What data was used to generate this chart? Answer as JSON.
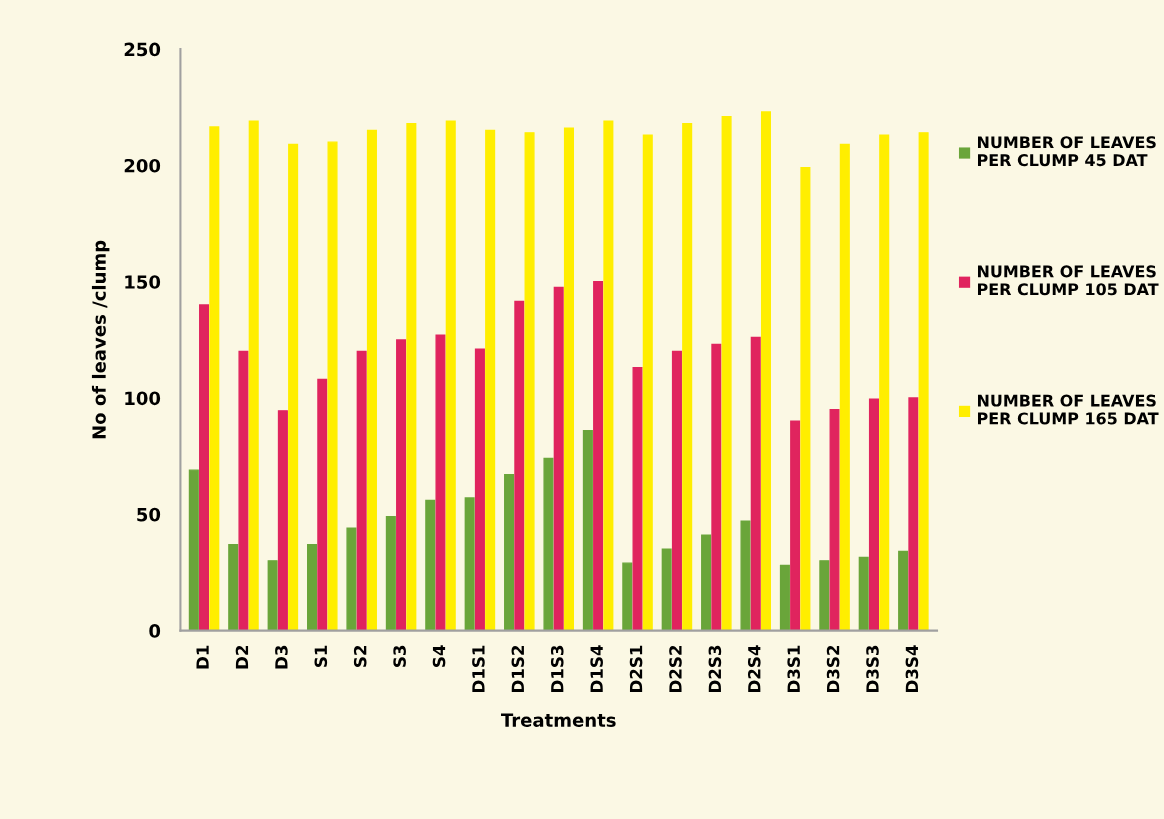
{
  "chart_data": {
    "type": "bar",
    "xlabel": "Treatments",
    "ylabel": "No of leaves /clump",
    "categories": [
      "D1",
      "D2",
      "D3",
      "S1",
      "S2",
      "S3",
      "S4",
      "D1S1",
      "D1S2",
      "D1S3",
      "D1S4",
      "D2S1",
      "D2S2",
      "D2S3",
      "D2S4",
      "D3S1",
      "D3S2",
      "D3S3",
      "D3S4"
    ],
    "series": [
      {
        "name": "NUMBER OF LEAVES\nPER CLUMP 45 DAT",
        "color": "#6aa53a",
        "values": [
          69,
          37,
          30,
          37,
          44,
          49,
          56,
          57,
          67,
          74,
          86,
          29,
          35,
          41,
          47,
          28,
          30,
          31.5,
          34
        ]
      },
      {
        "name": "NUMBER OF LEAVES\nPER CLUMP 105 DAT",
        "color": "#e0245e",
        "values": [
          140,
          120,
          94.5,
          108,
          120,
          125,
          127,
          121,
          141.5,
          147.5,
          150,
          113,
          120,
          123,
          126,
          90,
          95,
          99.5,
          100
        ]
      },
      {
        "name": "NUMBER OF LEAVES\nPER CLUMP 165 DAT",
        "color": "#ffee00",
        "values": [
          216.5,
          219,
          209,
          210,
          215,
          218,
          219,
          215,
          214,
          216,
          219,
          213,
          218,
          221,
          223,
          199,
          209,
          213,
          214
        ]
      }
    ],
    "ylim": [
      0,
      250
    ],
    "yticks": [
      0,
      50,
      100,
      150,
      200,
      250
    ],
    "grid": false,
    "legend": "right"
  }
}
